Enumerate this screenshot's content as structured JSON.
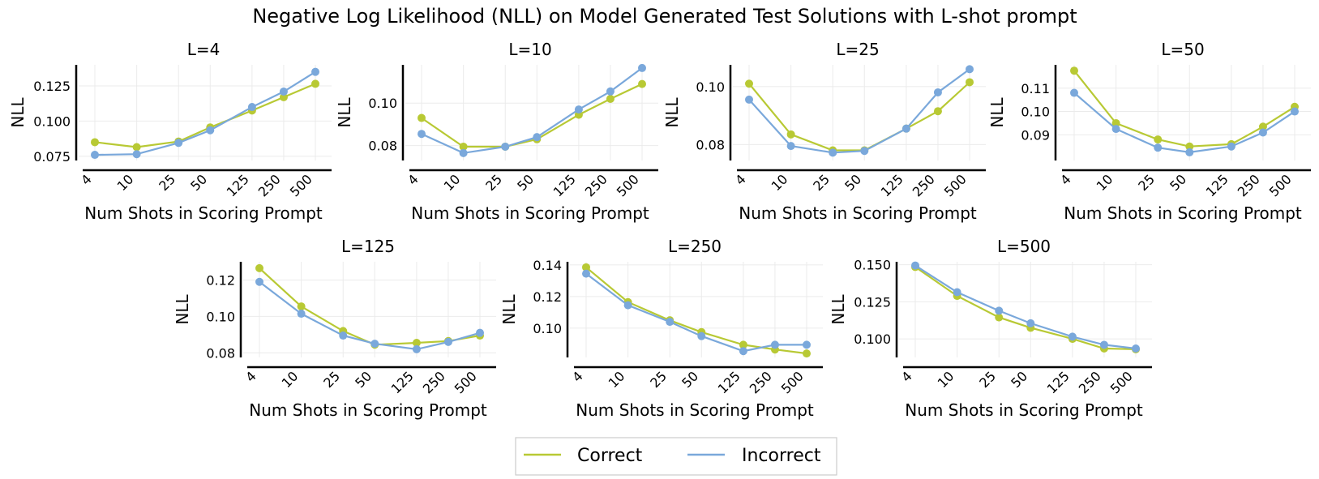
{
  "chart_data": {
    "type": "line",
    "title": "Negative Log Likelihood (NLL) on Model Generated Test Solutions with L-shot prompt",
    "xlabel": "Num Shots in Scoring Prompt",
    "ylabel": "NLL",
    "x_scale": "log",
    "x": [
      4,
      10,
      25,
      50,
      125,
      250,
      500
    ],
    "x_tick_labels": [
      "4",
      "10",
      "25",
      "50",
      "125",
      "250",
      "500"
    ],
    "grid": true,
    "legend": {
      "placement": "bottom-center",
      "entries": [
        "Correct",
        "Incorrect"
      ]
    },
    "colors": {
      "Correct": "#b8c934",
      "Incorrect": "#7aa8db"
    },
    "panels": [
      {
        "title": "L=4",
        "ylim": [
          0.072,
          0.14
        ],
        "y_ticks": [
          0.075,
          0.1,
          0.125
        ],
        "y_tick_labels": [
          "0.075",
          "0.100",
          "0.125"
        ],
        "series": [
          {
            "name": "Correct",
            "values": [
              0.085,
              0.0815,
              0.0855,
              0.0955,
              0.1075,
              0.117,
              0.1265
            ]
          },
          {
            "name": "Incorrect",
            "values": [
              0.076,
              0.0765,
              0.0845,
              0.0935,
              0.11,
              0.121,
              0.135
            ]
          }
        ]
      },
      {
        "title": "L=10",
        "ylim": [
          0.073,
          0.118
        ],
        "y_ticks": [
          0.08,
          0.1
        ],
        "y_tick_labels": [
          "0.08",
          "0.10"
        ],
        "series": [
          {
            "name": "Correct",
            "values": [
              0.093,
              0.0795,
              0.0795,
              0.083,
              0.0945,
              0.102,
              0.109
            ]
          },
          {
            "name": "Incorrect",
            "values": [
              0.0855,
              0.0765,
              0.0795,
              0.084,
              0.097,
              0.1055,
              0.1165
            ]
          }
        ]
      },
      {
        "title": "L=25",
        "ylim": [
          0.0745,
          0.1075
        ],
        "y_ticks": [
          0.08,
          0.1
        ],
        "y_tick_labels": [
          "0.08",
          "0.10"
        ],
        "series": [
          {
            "name": "Correct",
            "values": [
              0.101,
              0.0835,
              0.078,
              0.078,
              0.0855,
              0.0915,
              0.1015
            ]
          },
          {
            "name": "Incorrect",
            "values": [
              0.0955,
              0.0795,
              0.0772,
              0.0778,
              0.0855,
              0.098,
              0.106
            ]
          }
        ]
      },
      {
        "title": "L=50",
        "ylim": [
          0.079,
          0.12
        ],
        "y_ticks": [
          0.09,
          0.1,
          0.11
        ],
        "y_tick_labels": [
          "0.09",
          "0.10",
          "0.11"
        ],
        "series": [
          {
            "name": "Correct",
            "values": [
              0.1175,
              0.095,
              0.088,
              0.085,
              0.086,
              0.0935,
              0.102
            ]
          },
          {
            "name": "Incorrect",
            "values": [
              0.108,
              0.0925,
              0.0845,
              0.0825,
              0.085,
              0.091,
              0.1
            ]
          }
        ]
      },
      {
        "title": "L=125",
        "ylim": [
          0.0775,
          0.13
        ],
        "y_ticks": [
          0.08,
          0.1,
          0.12
        ],
        "y_tick_labels": [
          "0.08",
          "0.10",
          "0.12"
        ],
        "series": [
          {
            "name": "Correct",
            "values": [
              0.1265,
              0.1055,
              0.092,
              0.0845,
              0.0855,
              0.0865,
              0.0895
            ]
          },
          {
            "name": "Incorrect",
            "values": [
              0.119,
              0.1015,
              0.0895,
              0.085,
              0.082,
              0.086,
              0.091
            ]
          }
        ]
      },
      {
        "title": "L=250",
        "ylim": [
          0.0815,
          0.142
        ],
        "y_ticks": [
          0.1,
          0.12,
          0.14
        ],
        "y_tick_labels": [
          "0.10",
          "0.12",
          "0.14"
        ],
        "series": [
          {
            "name": "Correct",
            "values": [
              0.1385,
              0.1165,
              0.105,
              0.0975,
              0.0895,
              0.0865,
              0.084
            ]
          },
          {
            "name": "Incorrect",
            "values": [
              0.1345,
              0.1145,
              0.104,
              0.095,
              0.0855,
              0.0895,
              0.0895
            ]
          }
        ]
      },
      {
        "title": "L=500",
        "ylim": [
          0.0875,
          0.152
        ],
        "y_ticks": [
          0.1,
          0.125,
          0.15
        ],
        "y_tick_labels": [
          "0.100",
          "0.125",
          "0.150"
        ],
        "series": [
          {
            "name": "Correct",
            "values": [
              0.1485,
              0.129,
              0.1145,
              0.1075,
              0.1,
              0.0935,
              0.093
            ]
          },
          {
            "name": "Incorrect",
            "values": [
              0.1495,
              0.1315,
              0.119,
              0.1105,
              0.1015,
              0.096,
              0.0935
            ]
          }
        ]
      }
    ]
  }
}
